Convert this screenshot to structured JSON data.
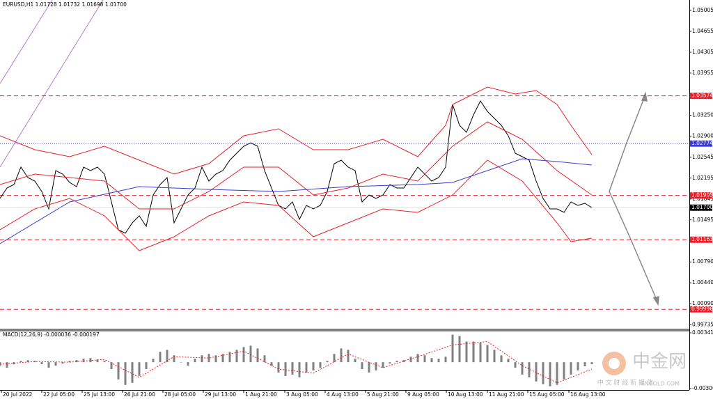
{
  "chart_data": [
    {
      "type": "line",
      "title": "EURUSD,H1  1.01728 1.01732 1.01698 1.01700",
      "xlim": [
        0,
        99
      ],
      "ylim": [
        0.9966,
        1.0518
      ],
      "yticks": [
        1.05005,
        1.04655,
        1.04305,
        1.03955,
        {
          "value": 1.0325,
          "label": "1.03250"
        },
        {
          "value": 1.029,
          "label": "1.02900"
        },
        1.02545,
        1.02195,
        1.01845,
        1.01495,
        {
          "value": 1.0079,
          "label": "1.00790"
        },
        {
          "value": 1.0044,
          "label": "1.00440"
        },
        {
          "value": 1.0009,
          "label": "1.00090"
        },
        0.99735
      ],
      "xticks": [
        {
          "value": 0.2,
          "label": "20 Jul 2022"
        },
        {
          "value": 6,
          "label": "22 Jul 05:00"
        },
        {
          "value": 11.8,
          "label": "25 Jul 13:00"
        },
        {
          "value": 17.6,
          "label": "26 Jul 21:00"
        },
        {
          "value": 23.4,
          "label": "28 Jul 05:00"
        },
        {
          "value": 29.2,
          "label": "29 Jul 13:00"
        },
        {
          "value": 35,
          "label": "1 Aug 21:00"
        },
        {
          "value": 40.9,
          "label": "3 Aug 05:00"
        },
        {
          "value": 46.7,
          "label": "4 Aug 13:00"
        },
        {
          "value": 52.5,
          "label": "5 Aug 21:00"
        },
        {
          "value": 58.3,
          "label": "9 Aug 05:00"
        },
        {
          "value": 64.1,
          "label": "10 Aug 13:00"
        },
        {
          "value": 70,
          "label": "11 Aug 21:00"
        },
        {
          "value": 75.8,
          "label": "15 Aug 05:00"
        },
        {
          "value": 81.7,
          "label": "16 Aug 13:00"
        }
      ],
      "series": [
        {
          "color": "#000000",
          "values": [
            1.01854,
            1.02029,
            1.02087,
            1.02379,
            1.02204,
            1.02146,
            1.01971,
            1.01679,
            1.02321,
            1.02262,
            1.02122,
            1.02052,
            1.02379,
            1.02321,
            1.02379,
            1.02262,
            1.01796,
            1.01329,
            1.01271,
            1.01446,
            1.01562,
            1.01387,
            1.01912,
            1.02087,
            1.02204,
            1.01446,
            1.01679,
            1.01912,
            1.02029,
            1.02379,
            1.02146,
            1.02262,
            1.02321,
            1.02496,
            1.02613,
            1.02729,
            1.02788,
            1.02729,
            1.02321,
            1.02029,
            1.01737,
            1.01679,
            1.01796,
            1.01504,
            1.01737,
            1.01679,
            1.01737,
            1.01971,
            1.02438,
            1.02496,
            1.02379,
            1.02321,
            1.01796,
            1.01912,
            1.01854,
            1.01912,
            1.02087,
            1.02029,
            1.02029,
            1.02204,
            1.02379,
            1.02262,
            1.02146,
            1.02204,
            1.02379,
            1.03429,
            1.03079,
            1.02963,
            1.03254,
            1.03488,
            1.03313,
            1.03196,
            1.03079,
            1.02904,
            1.02613,
            1.02554,
            1.02496,
            1.02146,
            1.01854,
            1.01679,
            1.01679,
            1.01621,
            1.01796,
            1.01737,
            1.01772,
            1.017
          ]
        },
        {
          "color": "#e8202a",
          "x": [
            0,
            5,
            10,
            15,
            20,
            25,
            30,
            35,
            40,
            45,
            50,
            55,
            60,
            64,
            65,
            68,
            70,
            74,
            77,
            80,
            82,
            85
          ],
          "values": [
            1.02904,
            1.02671,
            1.02554,
            1.02729,
            1.02496,
            1.02262,
            1.02438,
            1.02904,
            1.03021,
            1.02671,
            1.02671,
            1.02846,
            1.02554,
            1.03079,
            1.03429,
            1.03605,
            1.03721,
            1.03605,
            1.03663,
            1.03429,
            1.03079,
            1.02589
          ]
        },
        {
          "color": "#e8202a",
          "x": [
            0,
            5,
            10,
            15,
            20,
            25,
            30,
            35,
            40,
            45,
            50,
            55,
            60,
            65,
            70,
            75,
            80,
            85
          ],
          "values": [
            1.02087,
            1.02262,
            1.02204,
            1.02146,
            1.01679,
            1.01679,
            1.01971,
            1.02379,
            1.02379,
            1.01912,
            1.02029,
            1.02262,
            1.02146,
            1.02729,
            1.03138,
            1.02846,
            1.02321,
            1.01912
          ]
        },
        {
          "color": "#e8202a",
          "x": [
            0,
            5,
            10,
            15,
            20,
            25,
            30,
            35,
            40,
            45,
            50,
            55,
            60,
            65,
            70,
            75,
            80,
            82,
            85
          ],
          "values": [
            1.01329,
            1.01679,
            1.01854,
            1.01562,
            1.00979,
            1.01212,
            1.01562,
            1.01796,
            1.01737,
            1.01212,
            1.01446,
            1.01679,
            1.01621,
            1.01912,
            1.02496,
            1.02146,
            1.01446,
            1.0113,
            1.01189
          ]
        },
        {
          "color": "#3a3ad0",
          "x": [
            0,
            10,
            20,
            30,
            40,
            50,
            60,
            65,
            70,
            75,
            80,
            85
          ],
          "values": [
            1.01095,
            1.01796,
            1.02052,
            1.02006,
            1.01971,
            1.02052,
            1.02087,
            1.02122,
            1.02321,
            1.02519,
            1.02473,
            1.02414
          ]
        }
      ],
      "levels": [
        1.03574,
        1.02774,
        1.01905,
        1.01163,
        0.99996
      ],
      "level_colors": [
        "#e8202a",
        "#3a3ad0",
        "#e8202a",
        "#e8202a",
        "#e8202a"
      ],
      "current_price": {
        "value": 1.017,
        "label": "1.01700"
      }
    },
    {
      "type": "bar",
      "title": "MACD(12,26,9) -0.000036 -0.000197",
      "xlim": [
        0,
        99
      ],
      "ylim": [
        -0.003065,
        0.003413
      ],
      "yticks": [
        0.003413,
        -0.003065
      ],
      "series": [
        {
          "color": "#808080",
          "values": [
            -0.0004,
            -0.00064,
            -0.00024,
            0.00016,
            0.00024,
            0.00016,
            -0.00024,
            -0.00064,
            -0.0004,
            -0.00016,
            0.00016,
            0.00024,
            0.0004,
            0.00048,
            0.00032,
            0.00016,
            -0.0008,
            -0.002,
            -0.00264,
            -0.0024,
            -0.0016,
            -0.0008,
            0.0004,
            0.0012,
            0.00144,
            0.0008,
            0,
            -0.0004,
            0.0004,
            0.0008,
            0.00096,
            0.0008,
            0.00096,
            0.0012,
            0.00144,
            0.00176,
            0.00192,
            0.0016,
            0.0008,
            -0.0004,
            -0.0012,
            -0.0016,
            -0.00144,
            -0.00176,
            -0.0012,
            -0.00096,
            -0.00064,
            0.00016,
            0.00096,
            0.0016,
            0.00144,
            0.0004,
            -0.0008,
            -0.0012,
            -0.00096,
            -0.00064,
            -0.00016,
            0.00016,
            0.00024,
            0.00064,
            0.00096,
            0.0008,
            0.00048,
            0.0004,
            0.00064,
            0.0032,
            0.00304,
            0.0024,
            0.0024,
            0.00224,
            0.002,
            0.00144,
            0.0008,
            0.0004,
            -0.00064,
            -0.00144,
            -0.00176,
            -0.00224,
            -0.00256,
            -0.0028,
            -0.00264,
            -0.002,
            -0.00144,
            -0.00096,
            -0.00048,
            -0.00024
          ]
        },
        {
          "color": "#e8202a",
          "x": [
            0,
            5,
            10,
            15,
            20,
            25,
            30,
            35,
            40,
            45,
            50,
            55,
            60,
            65,
            70,
            75,
            80,
            85
          ],
          "values": [
            -0.00024,
            8e-05,
            0,
            0.00032,
            -0.00176,
            0.00064,
            0.00048,
            0.00128,
            -0.0008,
            -0.00128,
            0.00096,
            -0.00064,
            0.00064,
            0.002,
            0.0024,
            -0.0004,
            -0.0024,
            -0.0008
          ]
        }
      ]
    }
  ],
  "watermark": {
    "brand": "中金网",
    "site": "CNGOLD.COM",
    "slogan": "中 文 财 经 新 媒 体"
  }
}
